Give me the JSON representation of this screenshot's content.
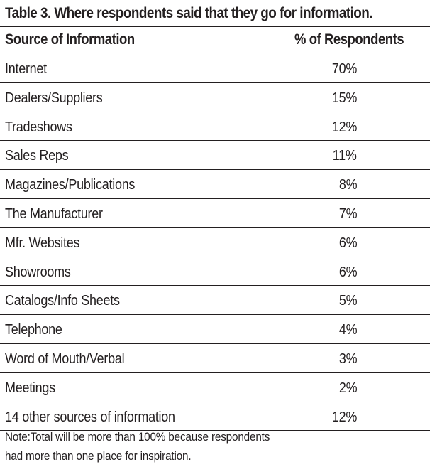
{
  "title": "Table 3. Where respondents said that they go for information.",
  "columns": [
    "Source of Information",
    "% of Respondents"
  ],
  "rows": [
    {
      "source": "Internet",
      "percent": "70%"
    },
    {
      "source": "Dealers/Suppliers",
      "percent": "15%"
    },
    {
      "source": "Tradeshows",
      "percent": "12%"
    },
    {
      "source": "Sales Reps",
      "percent": "11%"
    },
    {
      "source": "Magazines/Publications",
      "percent": "8%"
    },
    {
      "source": "The Manufacturer",
      "percent": "7%"
    },
    {
      "source": "Mfr. Websites",
      "percent": "6%"
    },
    {
      "source": "Showrooms",
      "percent": "6%"
    },
    {
      "source": "Catalogs/Info Sheets",
      "percent": "5%"
    },
    {
      "source": "Telephone",
      "percent": "4%"
    },
    {
      "source": "Word of Mouth/Verbal",
      "percent": "3%"
    },
    {
      "source": "Meetings",
      "percent": "2%"
    },
    {
      "source": "14 other sources of information",
      "percent": "12%"
    }
  ],
  "note": [
    "Note:Total will be more than 100% because respondents",
    "had more than one place for inspiration."
  ]
}
